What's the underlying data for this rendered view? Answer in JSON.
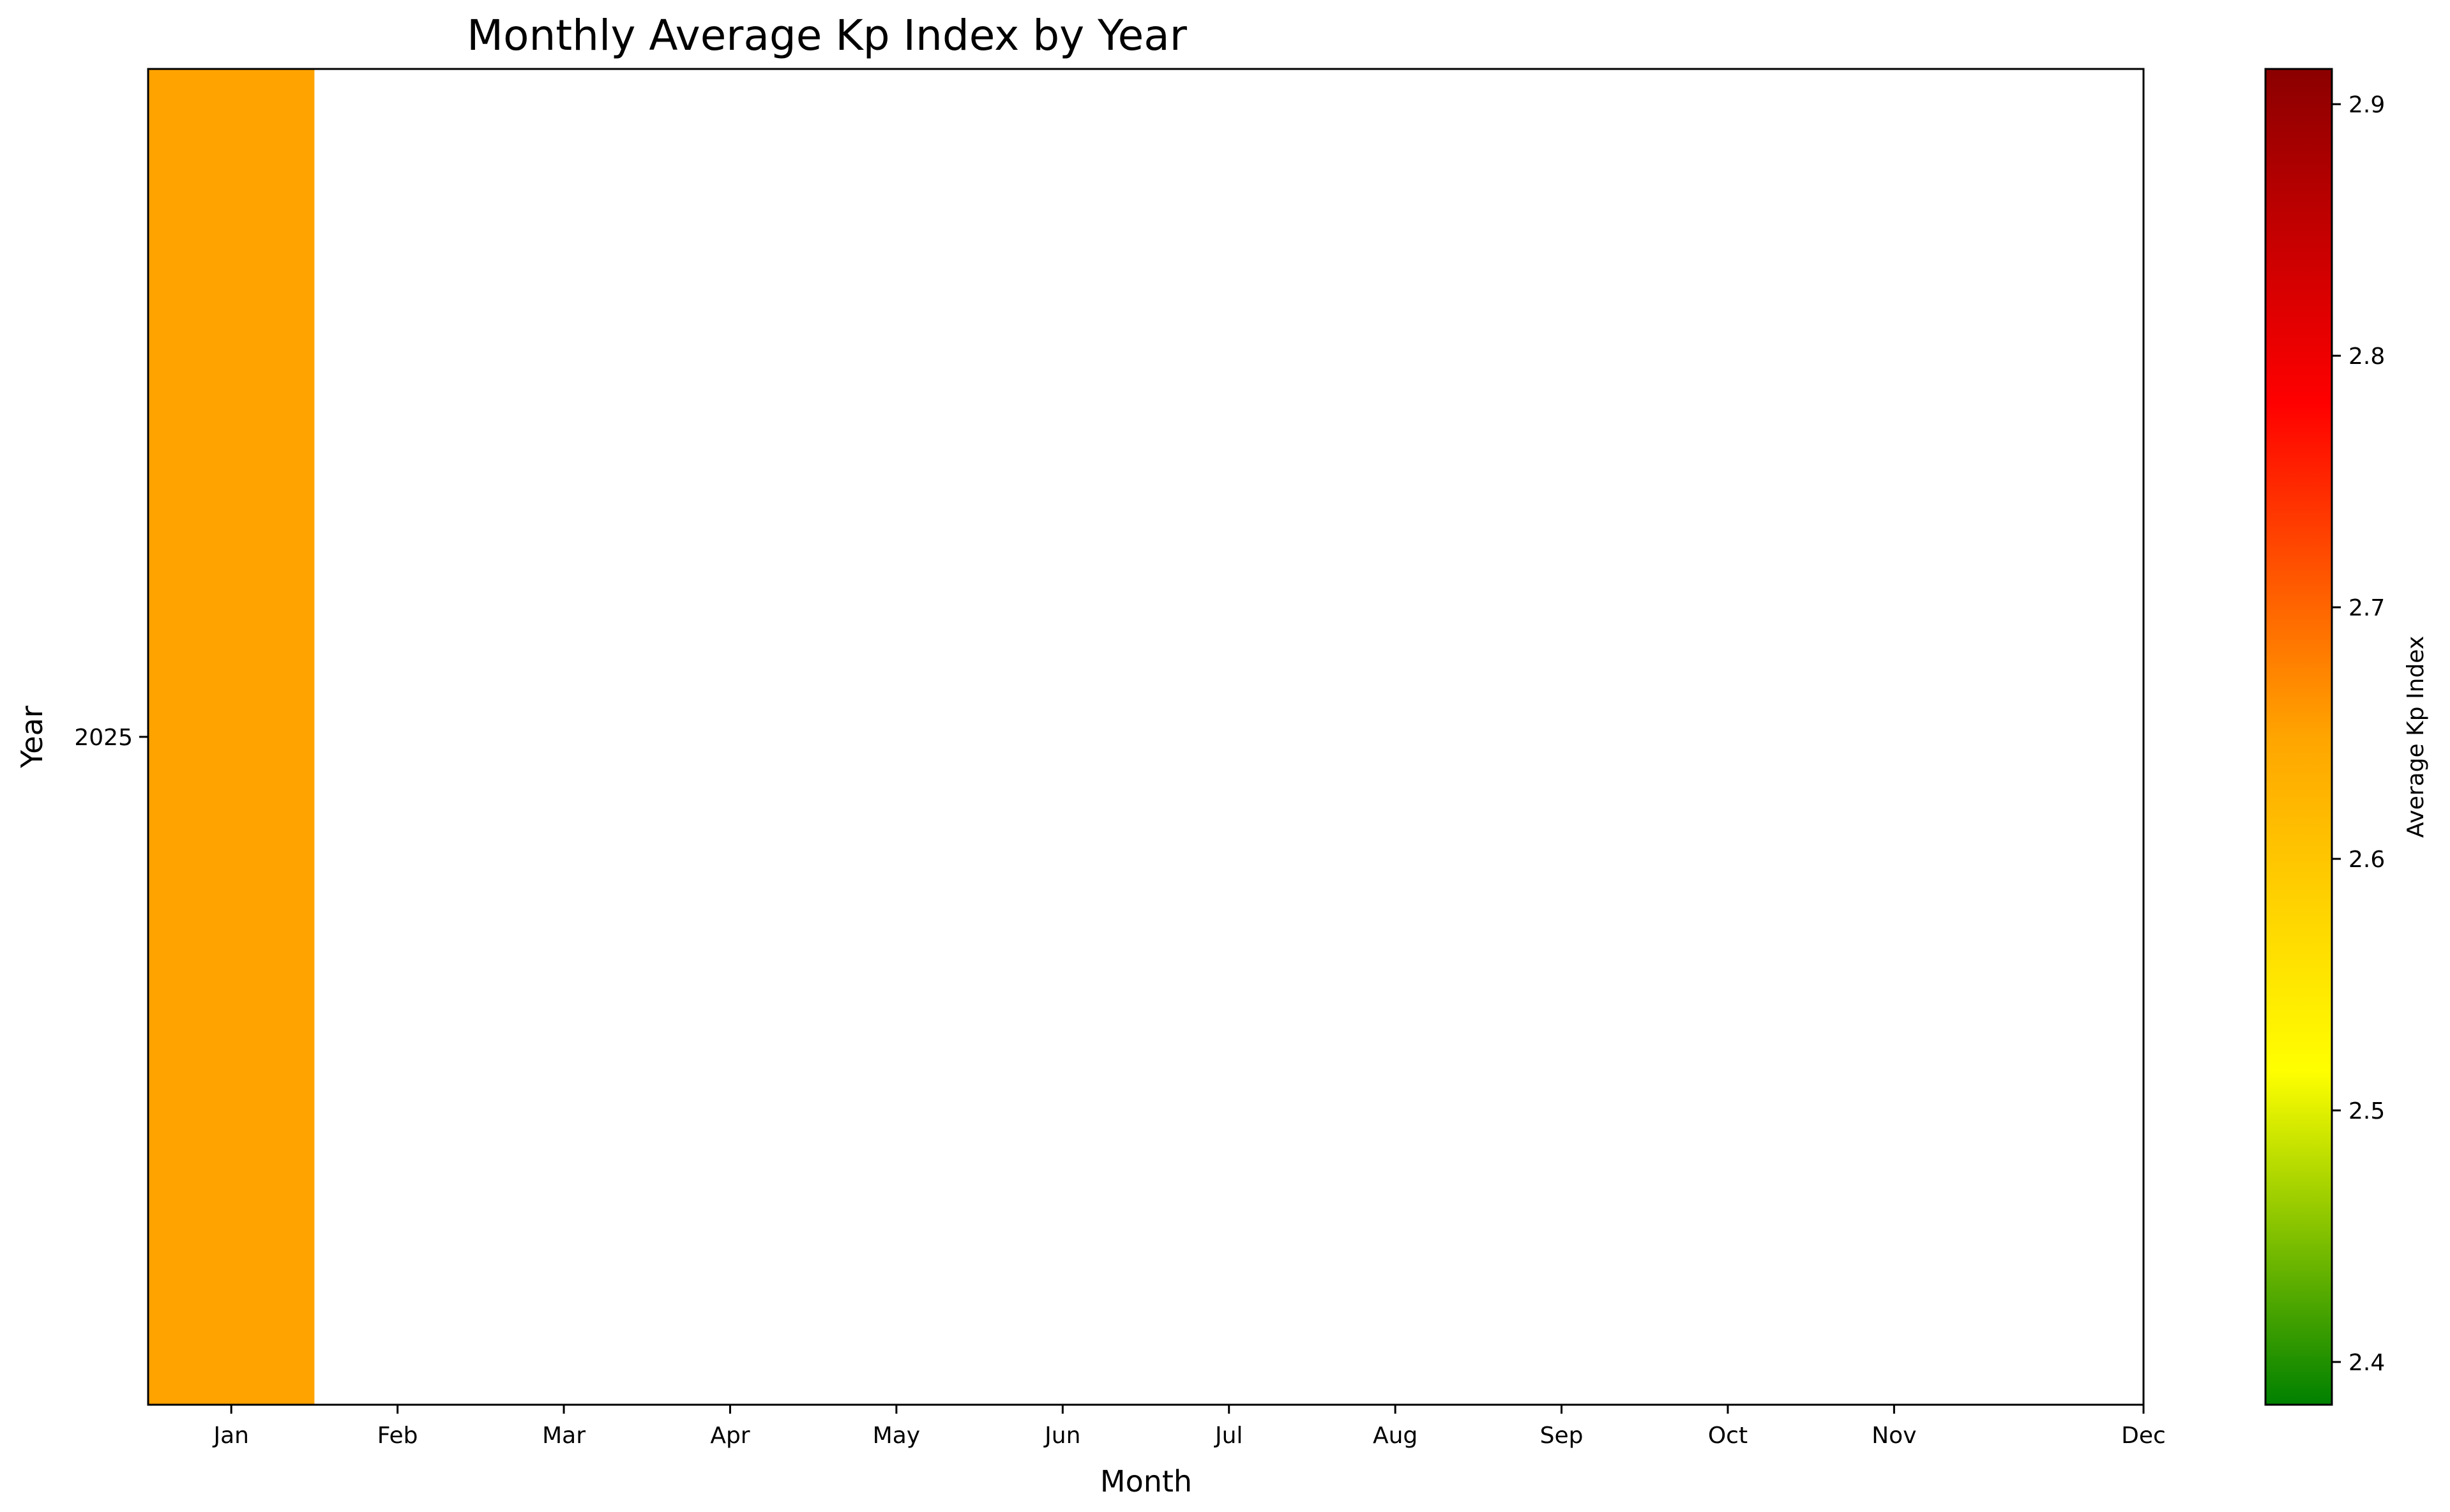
{
  "chart_data": {
    "type": "heatmap",
    "title": "Monthly Average Kp Index by Year",
    "xlabel": "Month",
    "ylabel": "Year",
    "x_categories": [
      "Jan",
      "Feb",
      "Mar",
      "Apr",
      "May",
      "Jun",
      "Jul",
      "Aug",
      "Sep",
      "Oct",
      "Nov",
      "Dec"
    ],
    "y_categories": [
      "2025"
    ],
    "values": [
      [
        2.65,
        null,
        null,
        null,
        null,
        null,
        null,
        null,
        null,
        null,
        null,
        null
      ]
    ],
    "colorbar": {
      "label": "Average Kp Index",
      "range": [
        2.383,
        2.914
      ],
      "ticks": [
        "2.4",
        "2.5",
        "2.6",
        "2.7",
        "2.8",
        "2.9"
      ],
      "colormap": [
        "#008000",
        "#ffff00",
        "#ffa500",
        "#ff0000",
        "#8b0000"
      ]
    },
    "grid": false
  }
}
